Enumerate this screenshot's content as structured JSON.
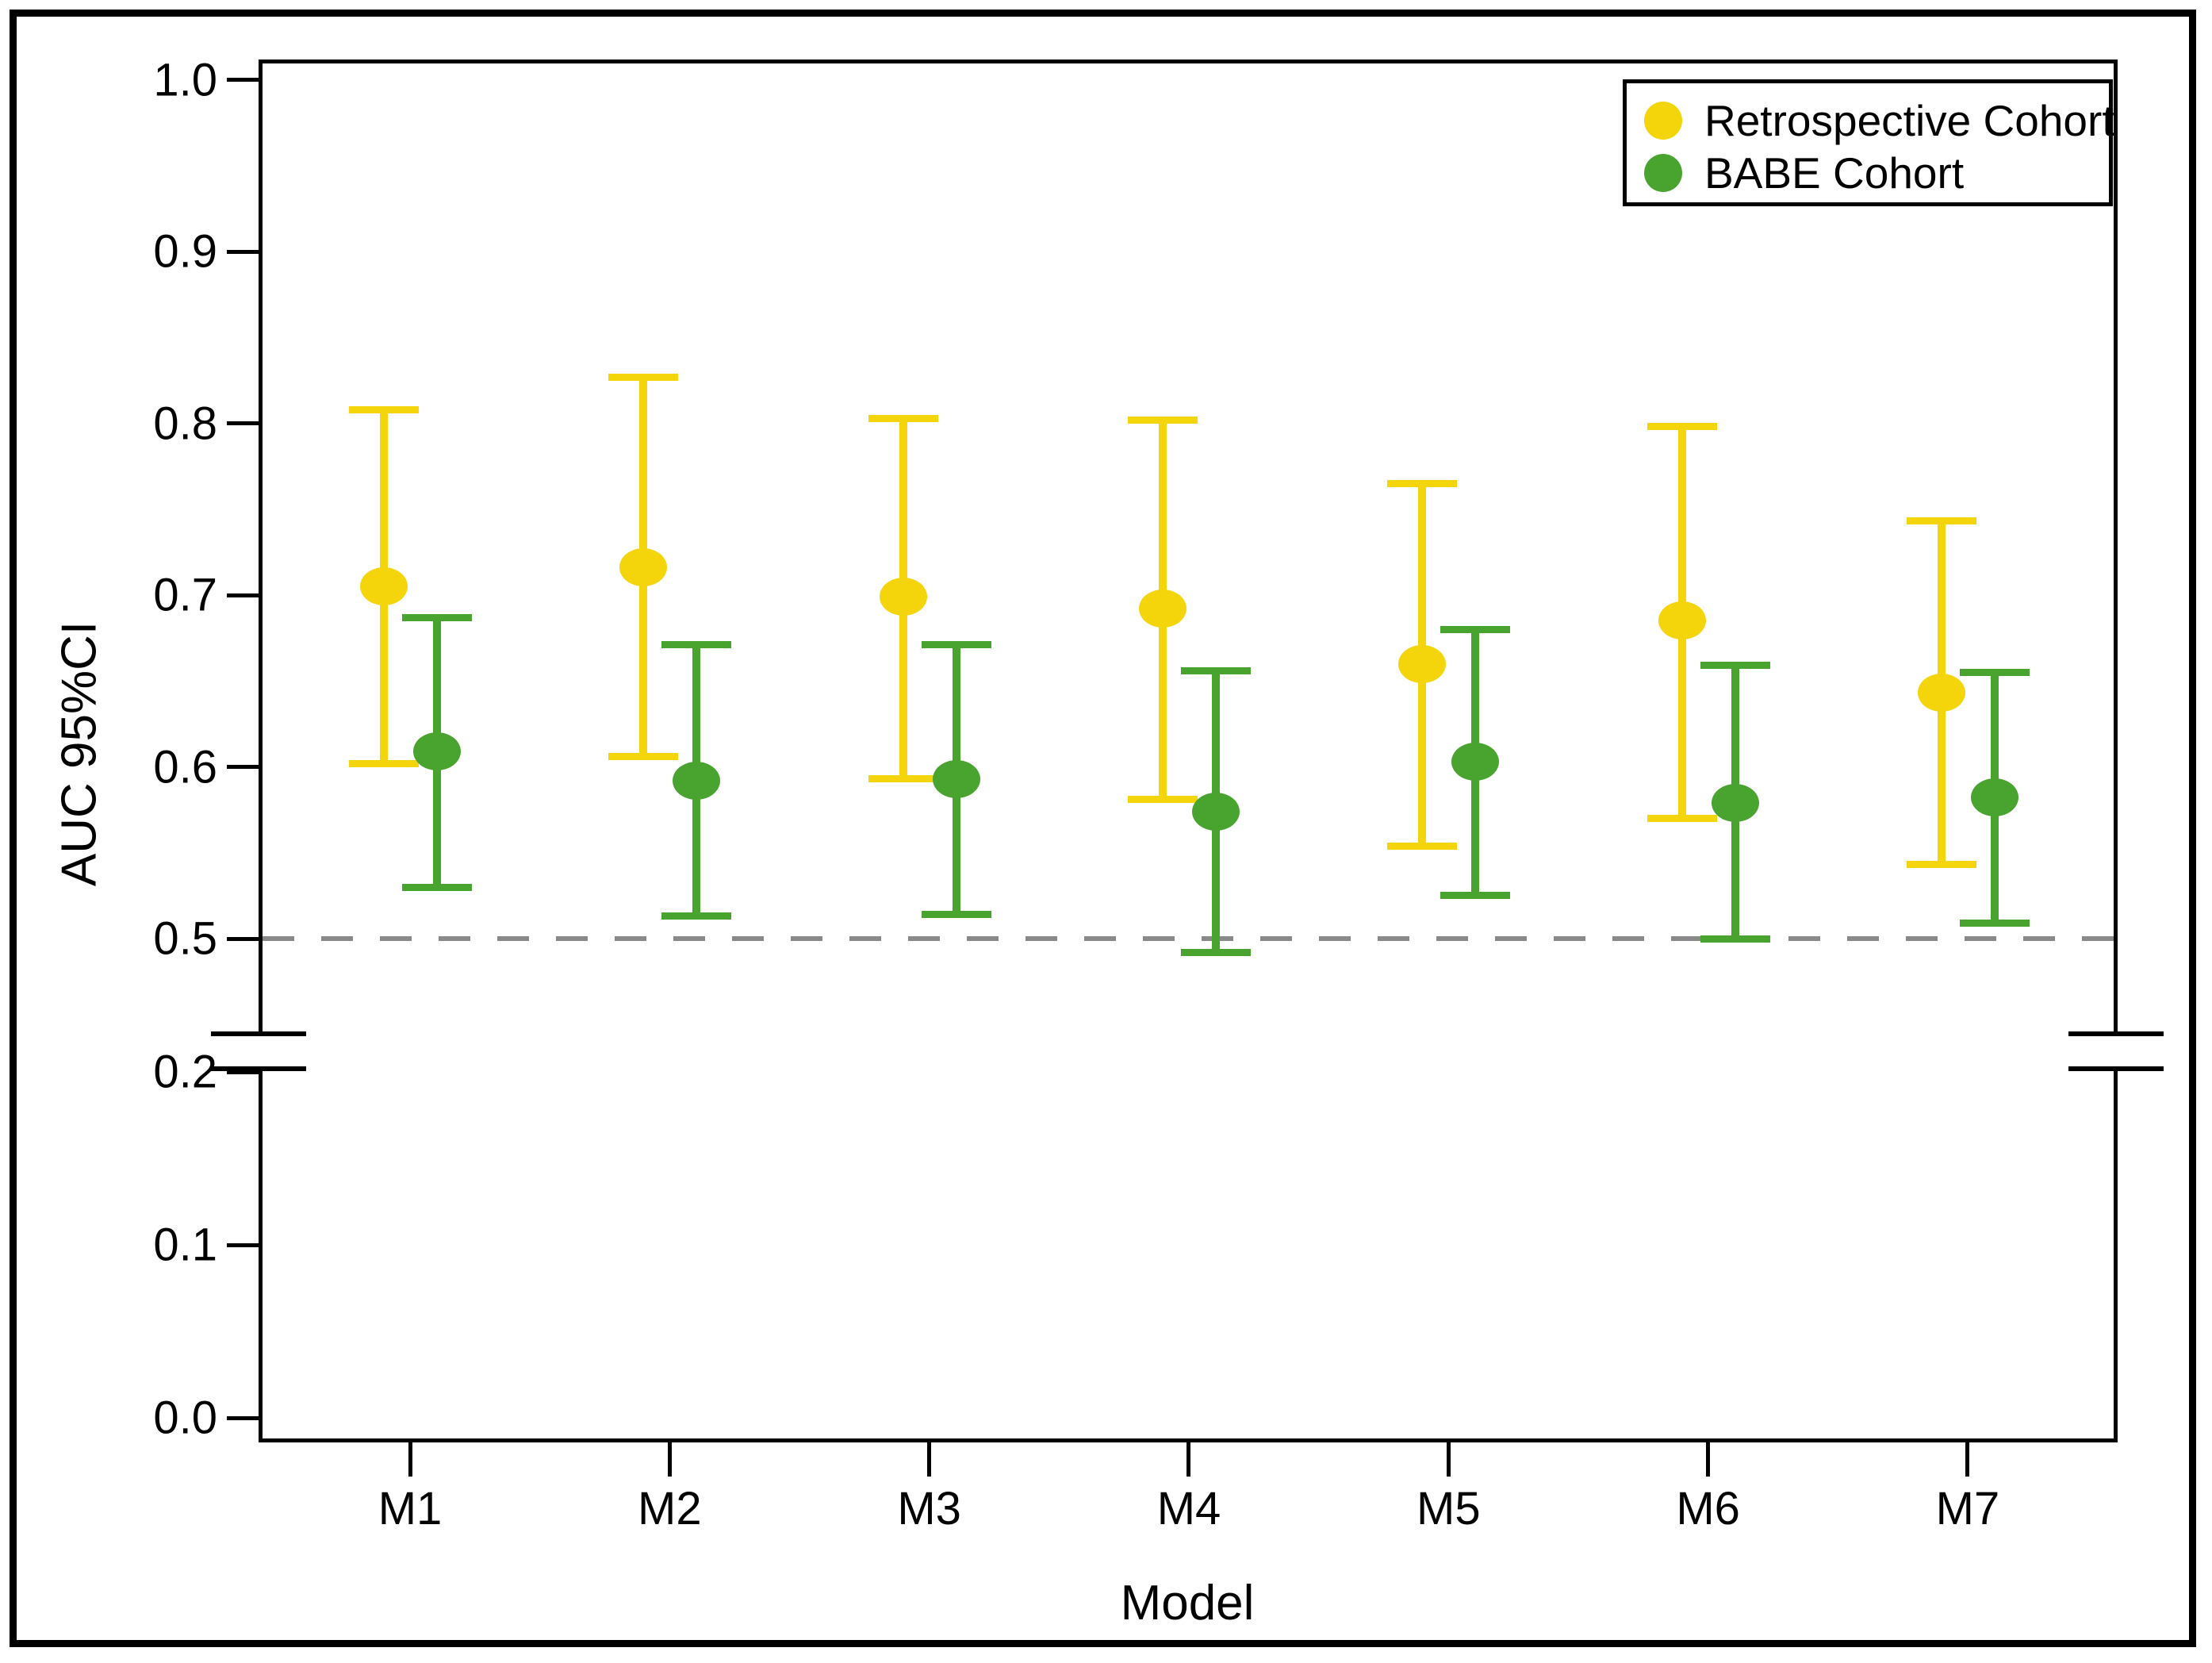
{
  "chart_data": {
    "type": "scatter",
    "subtype": "point-estimates-with-95ci-errorbars",
    "title": "",
    "xlabel": "Model",
    "ylabel": "AUC 95%CI",
    "categories": [
      "M1",
      "M2",
      "M3",
      "M4",
      "M5",
      "M6",
      "M7"
    ],
    "series": [
      {
        "name": "Retrospective Cohort",
        "color": "#F4D40A",
        "auc": [
          0.705,
          0.716,
          0.699,
          0.692,
          0.66,
          0.685,
          0.643
        ],
        "ci_low": [
          0.602,
          0.606,
          0.593,
          0.581,
          0.554,
          0.57,
          0.543
        ],
        "ci_high": [
          0.808,
          0.827,
          0.803,
          0.802,
          0.765,
          0.798,
          0.743
        ]
      },
      {
        "name": "BABE Cohort",
        "color": "#48A42E",
        "auc": [
          0.609,
          0.592,
          0.593,
          0.574,
          0.603,
          0.579,
          0.582
        ],
        "ci_low": [
          0.53,
          0.513,
          0.514,
          0.492,
          0.525,
          0.5,
          0.509
        ],
        "ci_high": [
          0.687,
          0.671,
          0.671,
          0.656,
          0.68,
          0.659,
          0.655
        ]
      }
    ],
    "y_ticks_upper": [
      1.0,
      0.9,
      0.8,
      0.7,
      0.6,
      0.5
    ],
    "y_ticks_lower": [
      0.2,
      0.1,
      0.0
    ],
    "y_axis_broken": true,
    "axis_break_between": [
      0.21,
      0.45
    ],
    "reference_line": {
      "value": 0.5,
      "style": "dashed",
      "color": "#8A8A8A"
    },
    "legend_position": "top-right",
    "grid": false
  }
}
